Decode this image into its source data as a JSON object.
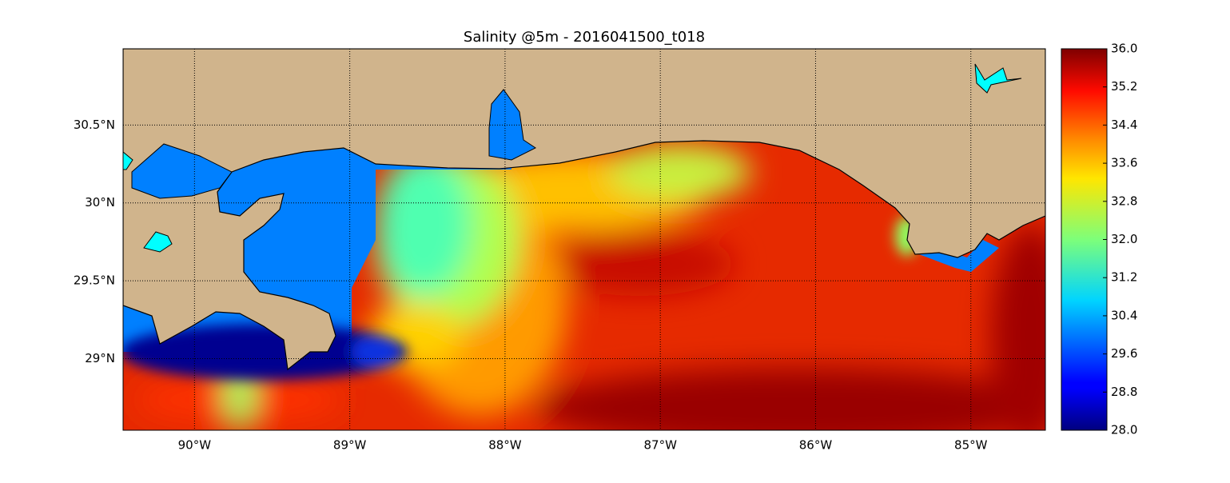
{
  "chart_data": {
    "type": "map",
    "title": "Salinity @5m - 2016041500_t018",
    "xlim": [
      -90.46,
      -84.52
    ],
    "ylim": [
      28.54,
      30.99
    ],
    "xticks": [
      {
        "value": -90,
        "label": "90°W"
      },
      {
        "value": -89,
        "label": "89°W"
      },
      {
        "value": -88,
        "label": "88°W"
      },
      {
        "value": -87,
        "label": "87°W"
      },
      {
        "value": -86,
        "label": "86°W"
      },
      {
        "value": -85,
        "label": "85°W"
      }
    ],
    "yticks": [
      {
        "value": 29,
        "label": "29°N"
      },
      {
        "value": 29.5,
        "label": "29.5°N"
      },
      {
        "value": 30,
        "label": "30°N"
      },
      {
        "value": 30.5,
        "label": "30.5°N"
      }
    ],
    "grid": true,
    "land_color": "#d0b48c",
    "mask_color": "#0080ff",
    "colorbar": {
      "colormap": "jet",
      "clim": [
        28,
        36
      ],
      "ticks": [
        {
          "value": 28,
          "label": "28.0"
        },
        {
          "value": 28.8,
          "label": "28.8"
        },
        {
          "value": 29.6,
          "label": "29.6"
        },
        {
          "value": 30.4,
          "label": "30.4"
        },
        {
          "value": 31.2,
          "label": "31.2"
        },
        {
          "value": 32,
          "label": "32.0"
        },
        {
          "value": 32.8,
          "label": "32.8"
        },
        {
          "value": 33.6,
          "label": "33.6"
        },
        {
          "value": 34.4,
          "label": "34.4"
        },
        {
          "value": 35.2,
          "label": "35.2"
        },
        {
          "value": 36,
          "label": "36.0"
        }
      ]
    }
  }
}
